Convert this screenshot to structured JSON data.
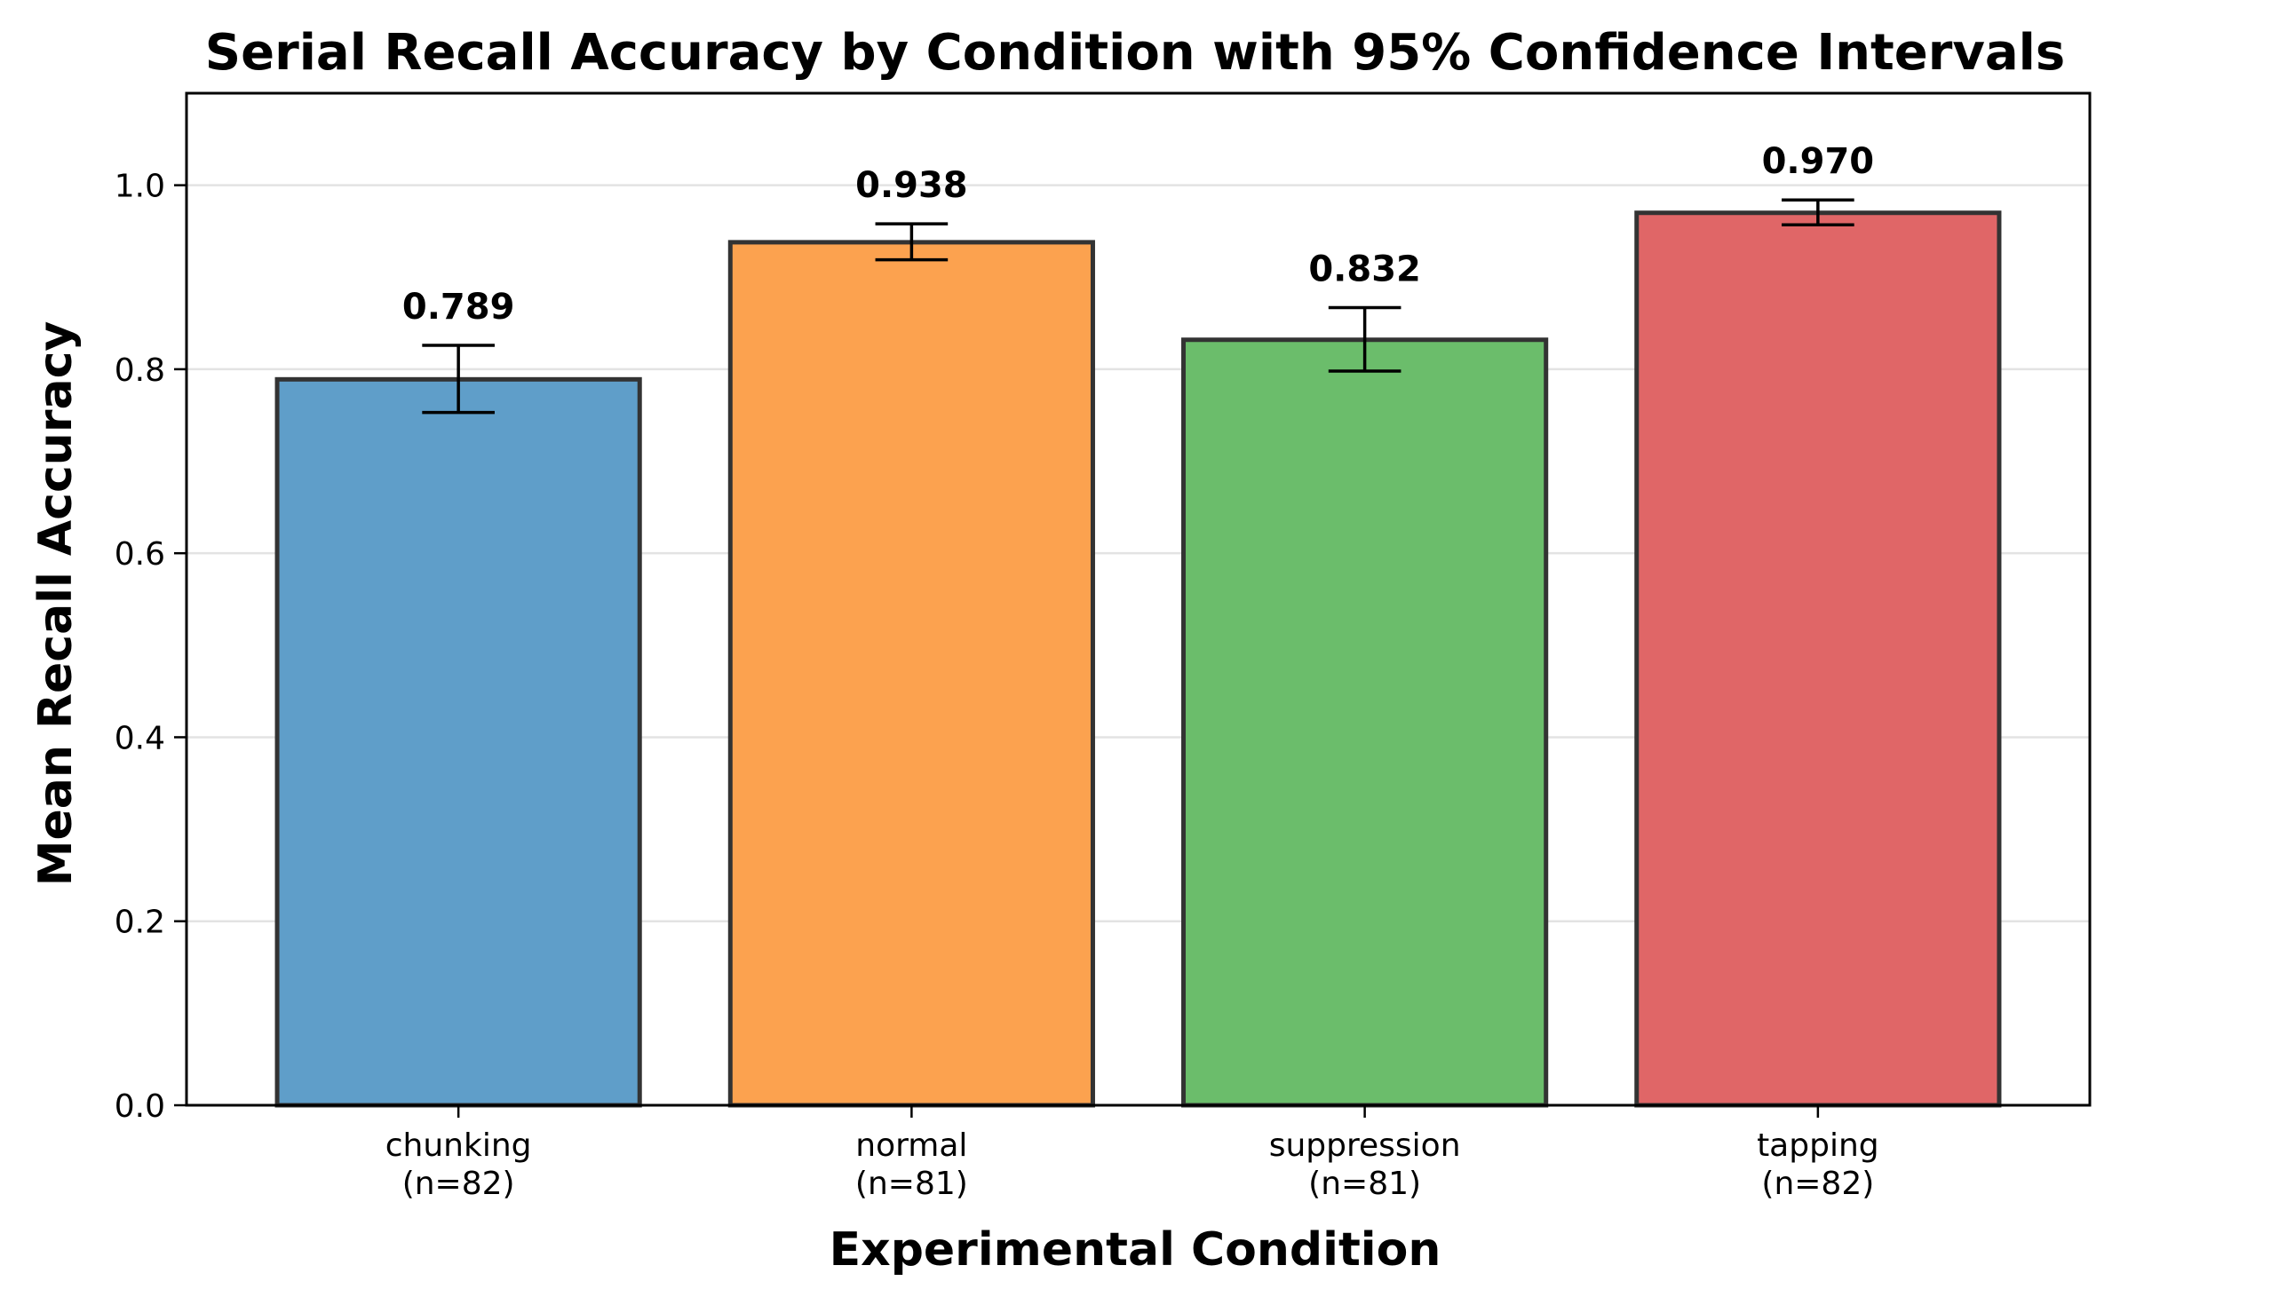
{
  "chart_data": {
    "type": "bar",
    "title": "Serial Recall Accuracy by Condition with 95% Confidence Intervals",
    "xlabel": "Experimental Condition",
    "ylabel": "Mean Recall Accuracy",
    "categories": [
      "chunking",
      "normal",
      "suppression",
      "tapping"
    ],
    "sample_sizes": [
      "(n=82)",
      "(n=81)",
      "(n=81)",
      "(n=82)"
    ],
    "values": [
      0.789,
      0.938,
      0.832,
      0.97
    ],
    "value_labels": [
      "0.789",
      "0.938",
      "0.832",
      "0.970"
    ],
    "ci_lower": [
      0.753,
      0.919,
      0.798,
      0.957
    ],
    "ci_upper": [
      0.826,
      0.958,
      0.867,
      0.984
    ],
    "colors": [
      "#5f9ec9",
      "#fca24f",
      "#6bbd6b",
      "#e06667"
    ],
    "edge_color": "#333333",
    "ylim": [
      0,
      1.1
    ],
    "yticks": [
      0.0,
      0.2,
      0.4,
      0.6,
      0.8,
      1.0
    ],
    "ytick_labels": [
      "0.0",
      "0.2",
      "0.4",
      "0.6",
      "0.8",
      "1.0"
    ],
    "grid": "y-major",
    "legend": "none"
  }
}
